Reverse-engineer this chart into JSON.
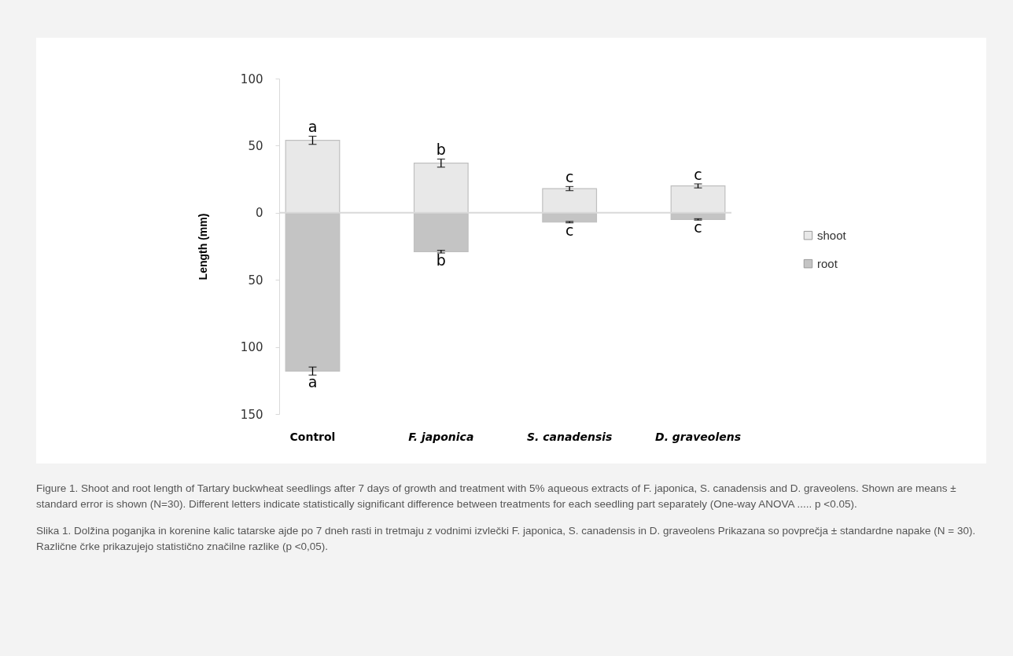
{
  "chart_data": {
    "type": "bar",
    "stacked": true,
    "ylabel": "Length (mm)",
    "categories": [
      "Control",
      "F. japonica",
      "S. canadensis",
      "D. graveolens"
    ],
    "series": [
      {
        "name": "shoot",
        "color": "#e8e8e8",
        "values": [
          54,
          37,
          18,
          20
        ],
        "errors": [
          3,
          3,
          1.5,
          1.5
        ]
      },
      {
        "name": "root",
        "color": "#c4c4c4",
        "values": [
          -118,
          -29,
          -7,
          -5
        ],
        "errors": [
          3,
          1,
          0.5,
          0.5
        ]
      }
    ],
    "ylim": [
      -150,
      100
    ],
    "yticks": [
      {
        "value": -150,
        "label": "150"
      },
      {
        "value": -100,
        "label": "100"
      },
      {
        "value": -50,
        "label": "50"
      },
      0,
      50,
      100
    ],
    "grid": false,
    "legend": "right",
    "ref_lines": [
      {
        "axis": "y",
        "value": 0,
        "color": "#d9d9d9"
      }
    ],
    "annotations": [
      {
        "text": "a",
        "x": "Control",
        "y": 57
      },
      {
        "text": "b",
        "x": "F. japonica",
        "y": 40
      },
      {
        "text": "c",
        "x": "S. canadensis",
        "y": 19.5
      },
      {
        "text": "c",
        "x": "D. graveolens",
        "y": 21.5
      },
      {
        "text": "a",
        "x": "Control",
        "y": -121
      },
      {
        "text": "b",
        "x": "F. japonica",
        "y": -30
      },
      {
        "text": "c",
        "x": "S. canadensis",
        "y": -7.5
      },
      {
        "text": "c",
        "x": "D. graveolens",
        "y": -5.5
      },
      "Figure 1. Shoot and root length of Tartary buckwheat seedlings after 7 days of growth and treatment with 5% aqueous extracts of F. japonica, S. canadensis and D. graveolens. Shown are means ± standard error is shown (N=30). Different letters indicate statistically significant difference between treatments for each seedling part separately (One-way ANOVA ..... p <0.05).",
      "Slika 1. Dolžina poganjka in korenine kalic tatarske ajde po 7 dneh rasti in tretmaju z vodnimi izvlečki F. japonica, S. canadensis in D. graveolens Prikazana so povprečja ± standardne napake (N = 30). Različne črke prikazujejo statistično značilne razlike (p <0,05)."
    ]
  }
}
